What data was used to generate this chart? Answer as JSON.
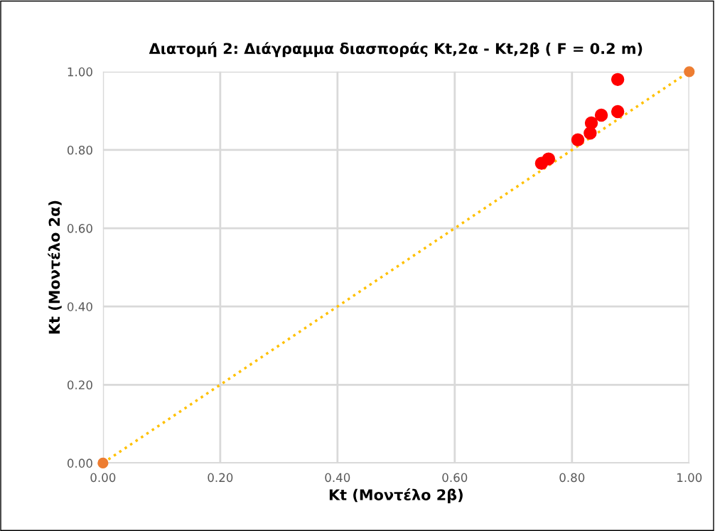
{
  "chart_data": {
    "type": "scatter",
    "title": "Διατομή 2: Διάγραμμα διασποράς Kt,2α - Kt,2β ( F = 0.2 m)",
    "xlabel": "Kt (Μοντέλο 2β)",
    "ylabel": "Kt (Μοντέλο 2α)",
    "xlim": [
      0,
      1
    ],
    "ylim": [
      0,
      1
    ],
    "xticks": [
      {
        "value": 0,
        "label": "0.00"
      },
      {
        "value": 0.2,
        "label": "0.20"
      },
      {
        "value": 0.4,
        "label": "0.40"
      },
      {
        "value": 0.6,
        "label": "0.60"
      },
      {
        "value": 0.8,
        "label": "0.80"
      },
      {
        "value": 1,
        "label": "1.00"
      }
    ],
    "yticks": [
      {
        "value": 0,
        "label": "0.00"
      },
      {
        "value": 0.2,
        "label": "0.20"
      },
      {
        "value": 0.4,
        "label": "0.40"
      },
      {
        "value": 0.6,
        "label": "0.60"
      },
      {
        "value": 0.8,
        "label": "0.80"
      },
      {
        "value": 1,
        "label": "1.00"
      }
    ],
    "grid": true,
    "legend": false,
    "marker": "circle",
    "series": [
      {
        "type": "line",
        "color": "#ffc000",
        "line_style": "dotted",
        "colors": [
          "#ed7d31",
          "#ed7d31"
        ],
        "x": [
          0,
          1
        ],
        "values": [
          0,
          1
        ]
      },
      {
        "color": "#ff0000",
        "x": [
          0.878,
          0.878,
          0.85,
          0.833,
          0.831,
          0.81,
          0.76,
          0.748
        ],
        "values": [
          0.98,
          0.898,
          0.889,
          0.869,
          0.843,
          0.826,
          0.777,
          0.766
        ]
      }
    ]
  }
}
